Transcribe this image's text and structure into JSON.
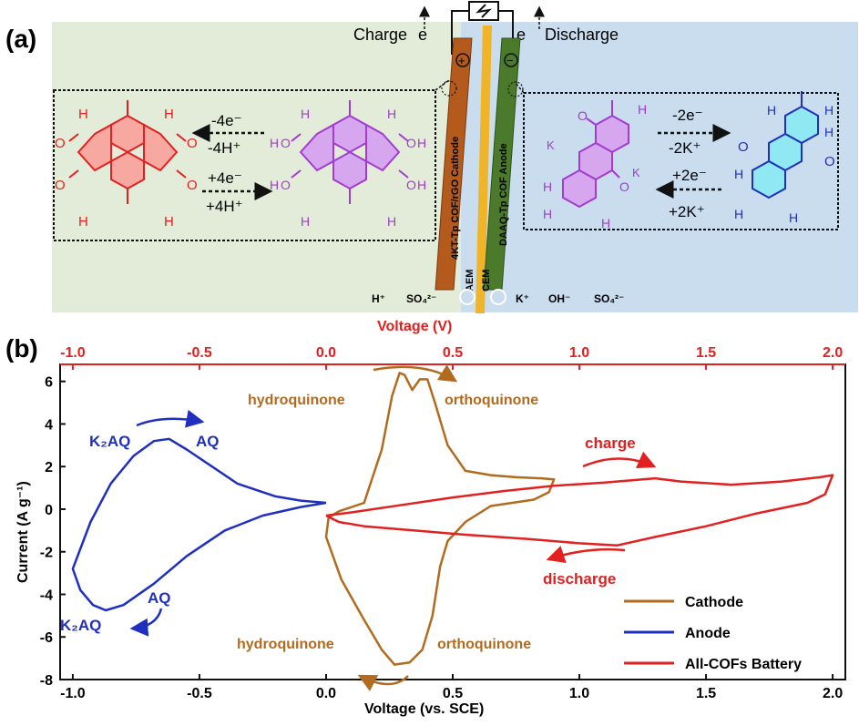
{
  "panel_a": {
    "label": "(a)",
    "charge_label": "Charge",
    "discharge_label": "Discharge",
    "electron": "e",
    "cathode_label": "4KT-Tp COF/rGO Cathode",
    "aem_label": "AEM",
    "cem_label": "CEM",
    "anode_label": "DAAQ-Tp COF Anode",
    "plus_sign": "+",
    "minus_sign": "−",
    "left_reaction": {
      "top_line1": "-4e⁻",
      "top_line2": "-4H⁺",
      "bottom_line1": "+4e⁻",
      "bottom_line2": "+4H⁺"
    },
    "right_reaction": {
      "top_line1": "-2e⁻",
      "top_line2": "-2K⁺",
      "bottom_line1": "+2e⁻",
      "bottom_line2": "+2K⁺"
    },
    "left_ions": [
      "H⁺",
      "SO₄²⁻"
    ],
    "right_ions": [
      "K⁺",
      "OH⁻",
      "SO₄²⁻"
    ],
    "atoms": {
      "H": "H",
      "O": "O",
      "K": "K"
    }
  },
  "panel_b": {
    "label": "(b)"
  },
  "chart_data": {
    "type": "line",
    "title": "",
    "xlabel": "Voltage (vs. SCE)",
    "ylabel": "Current (A g⁻¹)",
    "x2label": "Voltage (V)",
    "xlim": [
      -1.05,
      2.05
    ],
    "ylim": [
      -8,
      6.8
    ],
    "x_ticks": [
      "-1.0",
      "-0.5",
      "0.0",
      "0.5",
      "1.0",
      "1.5",
      "2.0"
    ],
    "x_tick_values": [
      -1.0,
      -0.5,
      0.0,
      0.5,
      1.0,
      1.5,
      2.0
    ],
    "y_ticks": [
      "-8",
      "-6",
      "-4",
      "-2",
      "0",
      "2",
      "4",
      "6"
    ],
    "y_tick_values": [
      -8,
      -6,
      -4,
      -2,
      0,
      2,
      4,
      6
    ],
    "legend_placement": "bottom-right",
    "series": [
      {
        "name": "Cathode",
        "color": "#b26b1e",
        "points": [
          [
            0.05,
            -0.1
          ],
          [
            0.15,
            0.3
          ],
          [
            0.22,
            2.8
          ],
          [
            0.26,
            5.3
          ],
          [
            0.29,
            6.4
          ],
          [
            0.31,
            6.3
          ],
          [
            0.34,
            5.6
          ],
          [
            0.37,
            6.1
          ],
          [
            0.4,
            6.1
          ],
          [
            0.43,
            5.0
          ],
          [
            0.48,
            3.0
          ],
          [
            0.55,
            1.8
          ],
          [
            0.65,
            1.6
          ],
          [
            0.75,
            1.5
          ],
          [
            0.85,
            1.45
          ],
          [
            0.9,
            1.4
          ],
          [
            0.88,
            0.8
          ],
          [
            0.82,
            0.45
          ],
          [
            0.65,
            0.15
          ],
          [
            0.55,
            -0.6
          ],
          [
            0.48,
            -1.5
          ],
          [
            0.45,
            -2.7
          ],
          [
            0.42,
            -5.0
          ],
          [
            0.38,
            -6.6
          ],
          [
            0.33,
            -7.2
          ],
          [
            0.27,
            -7.3
          ],
          [
            0.22,
            -6.6
          ],
          [
            0.15,
            -5.2
          ],
          [
            0.06,
            -3.3
          ],
          [
            0.0,
            -1.3
          ],
          [
            0.01,
            -0.4
          ],
          [
            0.05,
            -0.1
          ]
        ]
      },
      {
        "name": "Anode",
        "color": "#1f2fbf",
        "points": [
          [
            0.0,
            0.3
          ],
          [
            -0.1,
            0.4
          ],
          [
            -0.2,
            0.6
          ],
          [
            -0.35,
            1.2
          ],
          [
            -0.45,
            2.0
          ],
          [
            -0.55,
            2.8
          ],
          [
            -0.62,
            3.3
          ],
          [
            -0.68,
            3.2
          ],
          [
            -0.76,
            2.5
          ],
          [
            -0.85,
            1.2
          ],
          [
            -0.93,
            -0.6
          ],
          [
            -1.0,
            -2.8
          ],
          [
            -0.97,
            -3.8
          ],
          [
            -0.92,
            -4.5
          ],
          [
            -0.87,
            -4.75
          ],
          [
            -0.8,
            -4.5
          ],
          [
            -0.68,
            -3.5
          ],
          [
            -0.55,
            -2.2
          ],
          [
            -0.4,
            -1.0
          ],
          [
            -0.25,
            -0.3
          ],
          [
            -0.1,
            0.1
          ],
          [
            0.0,
            0.3
          ]
        ]
      },
      {
        "name": "All-COFs Battery",
        "color": "#e32020",
        "points": [
          [
            0.0,
            -0.3
          ],
          [
            0.1,
            -0.15
          ],
          [
            0.3,
            0.2
          ],
          [
            0.5,
            0.55
          ],
          [
            0.7,
            0.85
          ],
          [
            0.9,
            1.1
          ],
          [
            1.1,
            1.25
          ],
          [
            1.25,
            1.4
          ],
          [
            1.3,
            1.45
          ],
          [
            1.4,
            1.3
          ],
          [
            1.6,
            1.15
          ],
          [
            1.8,
            1.3
          ],
          [
            1.95,
            1.5
          ],
          [
            2.0,
            1.6
          ],
          [
            1.97,
            0.7
          ],
          [
            1.9,
            0.3
          ],
          [
            1.7,
            -0.2
          ],
          [
            1.5,
            -0.8
          ],
          [
            1.3,
            -1.3
          ],
          [
            1.15,
            -1.7
          ],
          [
            1.0,
            -1.6
          ],
          [
            0.8,
            -1.4
          ],
          [
            0.55,
            -1.2
          ],
          [
            0.35,
            -1.0
          ],
          [
            0.15,
            -0.8
          ],
          [
            0.05,
            -0.6
          ],
          [
            0.0,
            -0.3
          ]
        ]
      }
    ],
    "annotations": {
      "hydroquinone_top": "hydroquinone",
      "orthoquinone_top": "orthoquinone",
      "hydroquinone_bottom": "hydroquinone",
      "orthoquinone_bottom": "orthoquinone",
      "k2aq_top": "K₂AQ",
      "aq_top": "AQ",
      "aq_bottom": "AQ",
      "k2aq_bottom": "K₂AQ",
      "charge": "charge",
      "discharge": "discharge"
    },
    "colors": {
      "top_axis": "#e32020",
      "cathode_arrow": "#b26b1e",
      "anode_arrow": "#1f2fbf",
      "battery_arrow": "#e32020"
    }
  }
}
